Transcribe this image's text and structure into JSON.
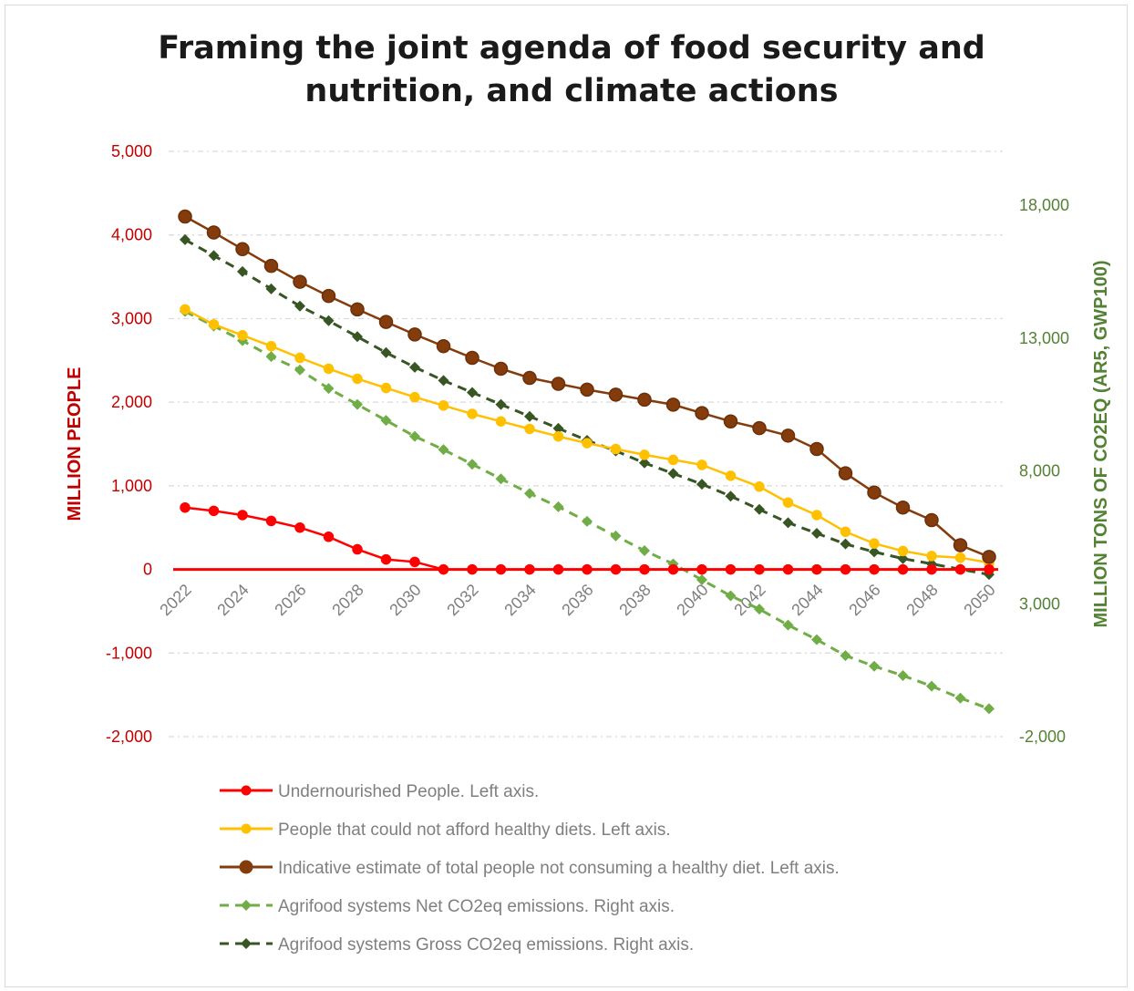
{
  "chart_data": {
    "type": "line",
    "title_lines": [
      "Framing the joint agenda of food security and",
      "nutrition, and climate actions"
    ],
    "x": [
      2022,
      2023,
      2024,
      2025,
      2026,
      2027,
      2028,
      2029,
      2030,
      2031,
      2032,
      2033,
      2034,
      2035,
      2036,
      2037,
      2038,
      2039,
      2040,
      2041,
      2042,
      2043,
      2044,
      2045,
      2046,
      2047,
      2048,
      2049,
      2050
    ],
    "x_tick_labels": [
      "2022",
      "2024",
      "2026",
      "2028",
      "2030",
      "2032",
      "2034",
      "2036",
      "2038",
      "2040",
      "2042",
      "2044",
      "2046",
      "2048",
      "2050"
    ],
    "ylabel_left": "MILLION PEOPLE",
    "ylabel_right": "MILLION TONS OF CO2EQ (AR5, GWP100)",
    "ylim_left": [
      -2000,
      5000
    ],
    "ylim_right": [
      -2000,
      18000
    ],
    "y_ticks_left": [
      -2000,
      -1000,
      0,
      1000,
      2000,
      3000,
      4000,
      5000
    ],
    "y_tick_labels_left": [
      "-2,000",
      "-1,000",
      "0",
      "1,000",
      "2,000",
      "3,000",
      "4,000",
      "5,000"
    ],
    "y_ticks_right": [
      -2000,
      3000,
      8000,
      13000,
      18000
    ],
    "y_tick_labels_right": [
      "-2,000",
      "3,000",
      "8,000",
      "13,000",
      "18,000"
    ],
    "grid": true,
    "legend_position": "bottom",
    "series": [
      {
        "name": "Undernourished People. Left axis.",
        "axis": "left",
        "color": "#ff0000",
        "style": "solid",
        "marker": "circle",
        "values": [
          740,
          700,
          650,
          580,
          500,
          390,
          240,
          120,
          90,
          0,
          0,
          0,
          0,
          0,
          0,
          0,
          0,
          0,
          0,
          0,
          0,
          0,
          0,
          0,
          0,
          0,
          0,
          0,
          0
        ]
      },
      {
        "name": "People that could not afford healthy diets. Left axis.",
        "axis": "left",
        "color": "#ffc000",
        "style": "solid",
        "marker": "circle",
        "values": [
          3110,
          2930,
          2800,
          2670,
          2530,
          2400,
          2280,
          2170,
          2060,
          1960,
          1860,
          1770,
          1680,
          1590,
          1510,
          1440,
          1370,
          1310,
          1250,
          1120,
          990,
          800,
          650,
          450,
          310,
          220,
          160,
          140,
          80
        ]
      },
      {
        "name": "Indicative estimate of total people not consuming a healthy diet. Left axis.",
        "axis": "left",
        "color": "#843c0c",
        "style": "solid",
        "marker": "circle",
        "values": [
          4220,
          4030,
          3830,
          3630,
          3440,
          3270,
          3110,
          2960,
          2810,
          2670,
          2530,
          2400,
          2290,
          2220,
          2150,
          2090,
          2030,
          1970,
          1870,
          1770,
          1690,
          1600,
          1440,
          1150,
          920,
          740,
          590,
          290,
          150
        ]
      },
      {
        "name": "Agrifood systems Net CO2eq emissions. Right axis.",
        "axis": "right",
        "color": "#70ad47",
        "style": "dashed",
        "marker": "diamond",
        "values": [
          14000,
          13450,
          12900,
          12300,
          11800,
          11100,
          10500,
          9900,
          9300,
          8800,
          8250,
          7700,
          7150,
          6650,
          6100,
          5550,
          5000,
          4500,
          3900,
          3300,
          2800,
          2200,
          1650,
          1050,
          650,
          300,
          -100,
          -550,
          -950
        ]
      },
      {
        "name": "Agrifood systems Gross CO2eq emissions. Right axis.",
        "axis": "right",
        "color": "#375623",
        "style": "dashed",
        "marker": "diamond",
        "values": [
          16700,
          16100,
          15500,
          14850,
          14200,
          13650,
          13050,
          12450,
          11900,
          11400,
          10950,
          10500,
          10050,
          9600,
          9150,
          8750,
          8300,
          7900,
          7500,
          7050,
          6550,
          6050,
          5650,
          5250,
          4950,
          4700,
          4500,
          4300,
          4100
        ]
      }
    ]
  }
}
